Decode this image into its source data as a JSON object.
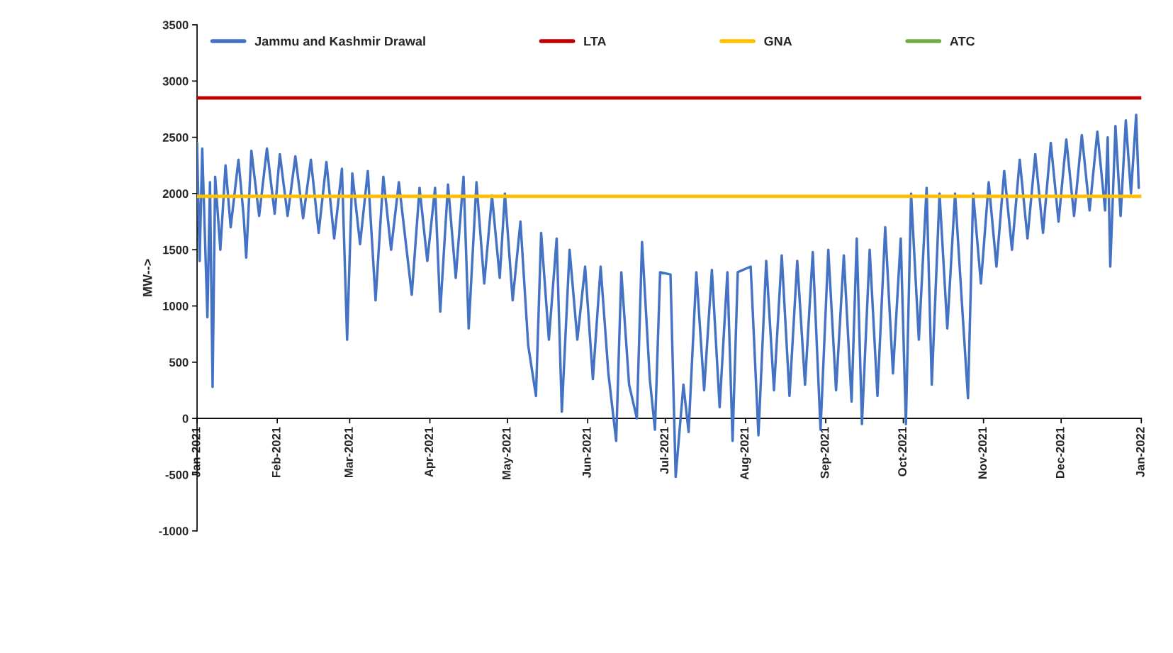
{
  "chart_data": {
    "type": "line",
    "ylabel": "MW-->",
    "legend": "top",
    "grid": false,
    "xlim": [
      "2021-01-01",
      "2022-01-01"
    ],
    "xticks": [
      {
        "value": "2021-01-01",
        "label": "Jan-2021"
      },
      {
        "value": "2021-02-01",
        "label": "Feb-2021"
      },
      {
        "value": "2021-03-01",
        "label": "Mar-2021"
      },
      {
        "value": "2021-04-01",
        "label": "Apr-2021"
      },
      {
        "value": "2021-05-01",
        "label": "May-2021"
      },
      {
        "value": "2021-06-01",
        "label": "Jun-2021"
      },
      {
        "value": "2021-07-01",
        "label": "Jul-2021"
      },
      {
        "value": "2021-08-01",
        "label": "Aug-2021"
      },
      {
        "value": "2021-09-01",
        "label": "Sep-2021"
      },
      {
        "value": "2021-10-01",
        "label": "Oct-2021"
      },
      {
        "value": "2021-11-01",
        "label": "Nov-2021"
      },
      {
        "value": "2021-12-01",
        "label": "Dec-2021"
      },
      {
        "value": "2022-01-01",
        "label": "Jan-2022"
      }
    ],
    "ylim": [
      -1000,
      3500
    ],
    "yticks": [
      -1000,
      -500,
      0,
      500,
      1000,
      1500,
      2000,
      2500,
      3000,
      3500
    ],
    "series": [
      {
        "name": "Jammu and Kashmir Drawal",
        "color": "#4472c4",
        "x": [
          "2021-01-01",
          "2021-01-02",
          "2021-01-03",
          "2021-01-05",
          "2021-01-06",
          "2021-01-07",
          "2021-01-08",
          "2021-01-10",
          "2021-01-12",
          "2021-01-14",
          "2021-01-17",
          "2021-01-19",
          "2021-01-20",
          "2021-01-22",
          "2021-01-25",
          "2021-01-28",
          "2021-01-31",
          "2021-02-02",
          "2021-02-05",
          "2021-02-08",
          "2021-02-11",
          "2021-02-14",
          "2021-02-17",
          "2021-02-20",
          "2021-02-23",
          "2021-02-26",
          "2021-02-28",
          "2021-03-02",
          "2021-03-05",
          "2021-03-08",
          "2021-03-11",
          "2021-03-14",
          "2021-03-17",
          "2021-03-20",
          "2021-03-23",
          "2021-03-25",
          "2021-03-28",
          "2021-03-31",
          "2021-04-03",
          "2021-04-05",
          "2021-04-08",
          "2021-04-11",
          "2021-04-14",
          "2021-04-16",
          "2021-04-19",
          "2021-04-22",
          "2021-04-25",
          "2021-04-28",
          "2021-04-30",
          "2021-05-03",
          "2021-05-06",
          "2021-05-09",
          "2021-05-12",
          "2021-05-14",
          "2021-05-17",
          "2021-05-20",
          "2021-05-22",
          "2021-05-25",
          "2021-05-28",
          "2021-05-31",
          "2021-06-03",
          "2021-06-06",
          "2021-06-09",
          "2021-06-12",
          "2021-06-14",
          "2021-06-17",
          "2021-06-20",
          "2021-06-22",
          "2021-06-25",
          "2021-06-27",
          "2021-06-29",
          "2021-07-03",
          "2021-07-05",
          "2021-07-08",
          "2021-07-10",
          "2021-07-13",
          "2021-07-16",
          "2021-07-19",
          "2021-07-22",
          "2021-07-25",
          "2021-07-27",
          "2021-07-29",
          "2021-08-03",
          "2021-08-06",
          "2021-08-09",
          "2021-08-12",
          "2021-08-15",
          "2021-08-18",
          "2021-08-21",
          "2021-08-24",
          "2021-08-27",
          "2021-08-30",
          "2021-09-02",
          "2021-09-05",
          "2021-09-08",
          "2021-09-11",
          "2021-09-13",
          "2021-09-15",
          "2021-09-18",
          "2021-09-21",
          "2021-09-24",
          "2021-09-27",
          "2021-09-30",
          "2021-10-02",
          "2021-10-04",
          "2021-10-07",
          "2021-10-10",
          "2021-10-12",
          "2021-10-15",
          "2021-10-18",
          "2021-10-21",
          "2021-10-24",
          "2021-10-26",
          "2021-10-28",
          "2021-10-31",
          "2021-11-03",
          "2021-11-06",
          "2021-11-09",
          "2021-11-12",
          "2021-11-15",
          "2021-11-18",
          "2021-11-21",
          "2021-11-24",
          "2021-11-27",
          "2021-11-30",
          "2021-12-03",
          "2021-12-06",
          "2021-12-09",
          "2021-12-12",
          "2021-12-15",
          "2021-12-18",
          "2021-12-19",
          "2021-12-20",
          "2021-12-22",
          "2021-12-24",
          "2021-12-26",
          "2021-12-28",
          "2021-12-30",
          "2021-12-31"
        ],
        "values": [
          2450,
          1400,
          2400,
          900,
          2100,
          280,
          2150,
          1500,
          2250,
          1700,
          2300,
          1800,
          1430,
          2380,
          1800,
          2400,
          1820,
          2350,
          1800,
          2330,
          1780,
          2300,
          1650,
          2280,
          1600,
          2220,
          700,
          2180,
          1550,
          2200,
          1050,
          2150,
          1500,
          2100,
          1500,
          1100,
          2050,
          1400,
          2050,
          950,
          2080,
          1250,
          2150,
          800,
          2100,
          1200,
          1980,
          1250,
          2000,
          1050,
          1750,
          650,
          200,
          1650,
          700,
          1600,
          60,
          1500,
          700,
          1350,
          350,
          1350,
          400,
          -200,
          1300,
          300,
          0,
          1570,
          350,
          -100,
          1300,
          1280,
          -520,
          300,
          -120,
          1300,
          250,
          1320,
          100,
          1300,
          -200,
          1300,
          1350,
          -150,
          1400,
          250,
          1450,
          200,
          1400,
          300,
          1480,
          -100,
          1500,
          250,
          1450,
          150,
          1600,
          -50,
          1500,
          200,
          1700,
          400,
          1600,
          -50,
          2000,
          700,
          2050,
          300,
          2000,
          800,
          2000,
          900,
          180,
          2000,
          1200,
          2100,
          1350,
          2200,
          1500,
          2300,
          1600,
          2350,
          1650,
          2450,
          1750,
          2480,
          1800,
          2520,
          1850,
          2550,
          1850,
          2500,
          1350,
          2600,
          1800,
          2650,
          2000,
          2700,
          2050
        ]
      },
      {
        "name": "LTA",
        "color": "#c00000",
        "x": [
          "2021-01-01",
          "2022-01-01"
        ],
        "values": [
          2850,
          2850
        ]
      },
      {
        "name": "GNA",
        "color": "#ffc000",
        "x": [
          "2021-01-01",
          "2022-01-01"
        ],
        "values": [
          1975,
          1975
        ]
      },
      {
        "name": "ATC",
        "color": "#70ad47"
      }
    ]
  }
}
